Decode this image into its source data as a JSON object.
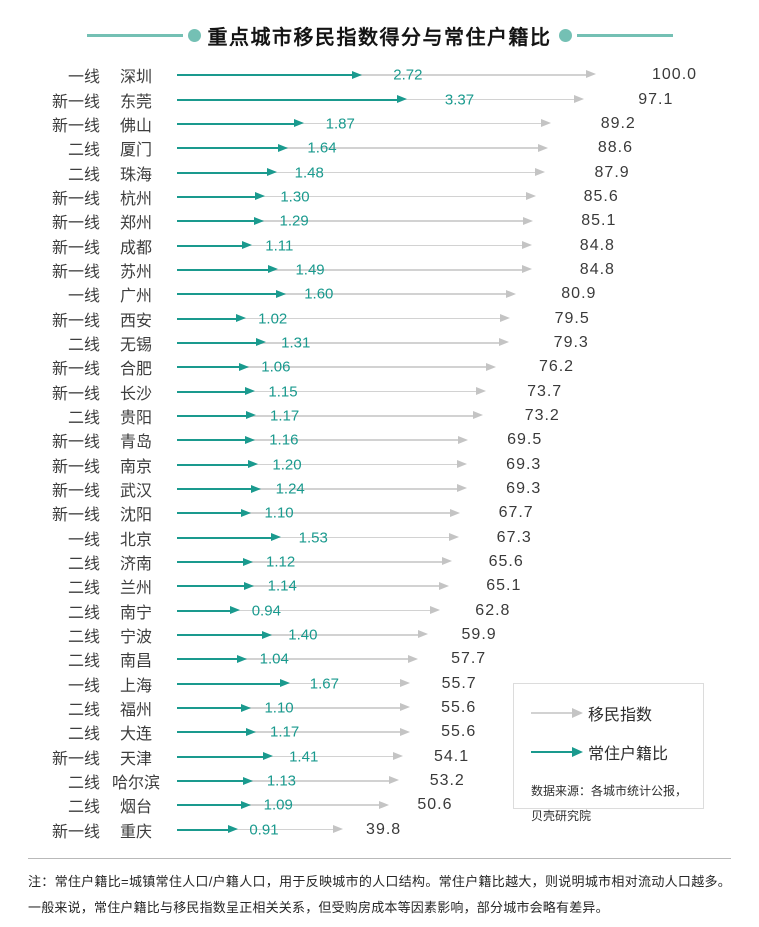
{
  "title": {
    "text": "重点城市移民指数得分与常住户籍比"
  },
  "legend": {
    "migration_label": "移民指数",
    "ratio_label": "常住户籍比",
    "source_line1": "数据来源：各城市统计公报，",
    "source_line2": "贝壳研究院"
  },
  "note": "注：常住户籍比=城镇常住人口/户籍人口，用于反映城市的人口结构。常住户籍比越大，则说明城市相对流动人口越多。一般来说，常住户籍比与移民指数呈正相关关系，但受购房成本等因素影响，部分城市会略有差异。",
  "colors": {
    "accent_teal": "#1a9a8e",
    "decoration_teal": "#74c0b4",
    "index_gray": "#d2d2d2"
  },
  "chart_data": {
    "type": "bar",
    "orientation": "horizontal",
    "title": "重点城市移民指数得分与常住户籍比",
    "legend_position": "bottom-right",
    "grid": false,
    "index_axis_range": [
      0,
      100
    ],
    "categories": [
      "深圳",
      "东莞",
      "佛山",
      "厦门",
      "珠海",
      "杭州",
      "郑州",
      "成都",
      "苏州",
      "广州",
      "西安",
      "无锡",
      "合肥",
      "长沙",
      "贵阳",
      "青岛",
      "南京",
      "武汉",
      "沈阳",
      "北京",
      "济南",
      "兰州",
      "南宁",
      "宁波",
      "南昌",
      "上海",
      "福州",
      "大连",
      "天津",
      "哈尔滨",
      "烟台",
      "重庆"
    ],
    "tiers": [
      "一线",
      "新一线",
      "新一线",
      "二线",
      "二线",
      "新一线",
      "新一线",
      "新一线",
      "新一线",
      "一线",
      "新一线",
      "二线",
      "新一线",
      "新一线",
      "二线",
      "新一线",
      "新一线",
      "新一线",
      "新一线",
      "一线",
      "二线",
      "二线",
      "二线",
      "二线",
      "二线",
      "一线",
      "二线",
      "二线",
      "新一线",
      "二线",
      "二线",
      "新一线"
    ],
    "series": [
      {
        "name": "移民指数",
        "color": "#d2d2d2",
        "decimals": 1,
        "values": [
          100.0,
          97.1,
          89.2,
          88.6,
          87.9,
          85.6,
          85.1,
          84.8,
          84.8,
          80.9,
          79.5,
          79.3,
          76.2,
          73.7,
          73.2,
          69.5,
          69.3,
          69.3,
          67.7,
          67.3,
          65.6,
          65.1,
          62.8,
          59.9,
          57.7,
          55.7,
          55.6,
          55.6,
          54.1,
          53.2,
          50.6,
          39.8
        ]
      },
      {
        "name": "常住户籍比",
        "color": "#1a9a8e",
        "decimals": 2,
        "values": [
          2.72,
          3.37,
          1.87,
          1.64,
          1.48,
          1.3,
          1.29,
          1.11,
          1.49,
          1.6,
          1.02,
          1.31,
          1.06,
          1.15,
          1.17,
          1.16,
          1.2,
          1.24,
          1.1,
          1.53,
          1.12,
          1.14,
          0.94,
          1.4,
          1.04,
          1.67,
          1.1,
          1.17,
          1.41,
          1.13,
          1.09,
          0.91
        ]
      }
    ]
  }
}
